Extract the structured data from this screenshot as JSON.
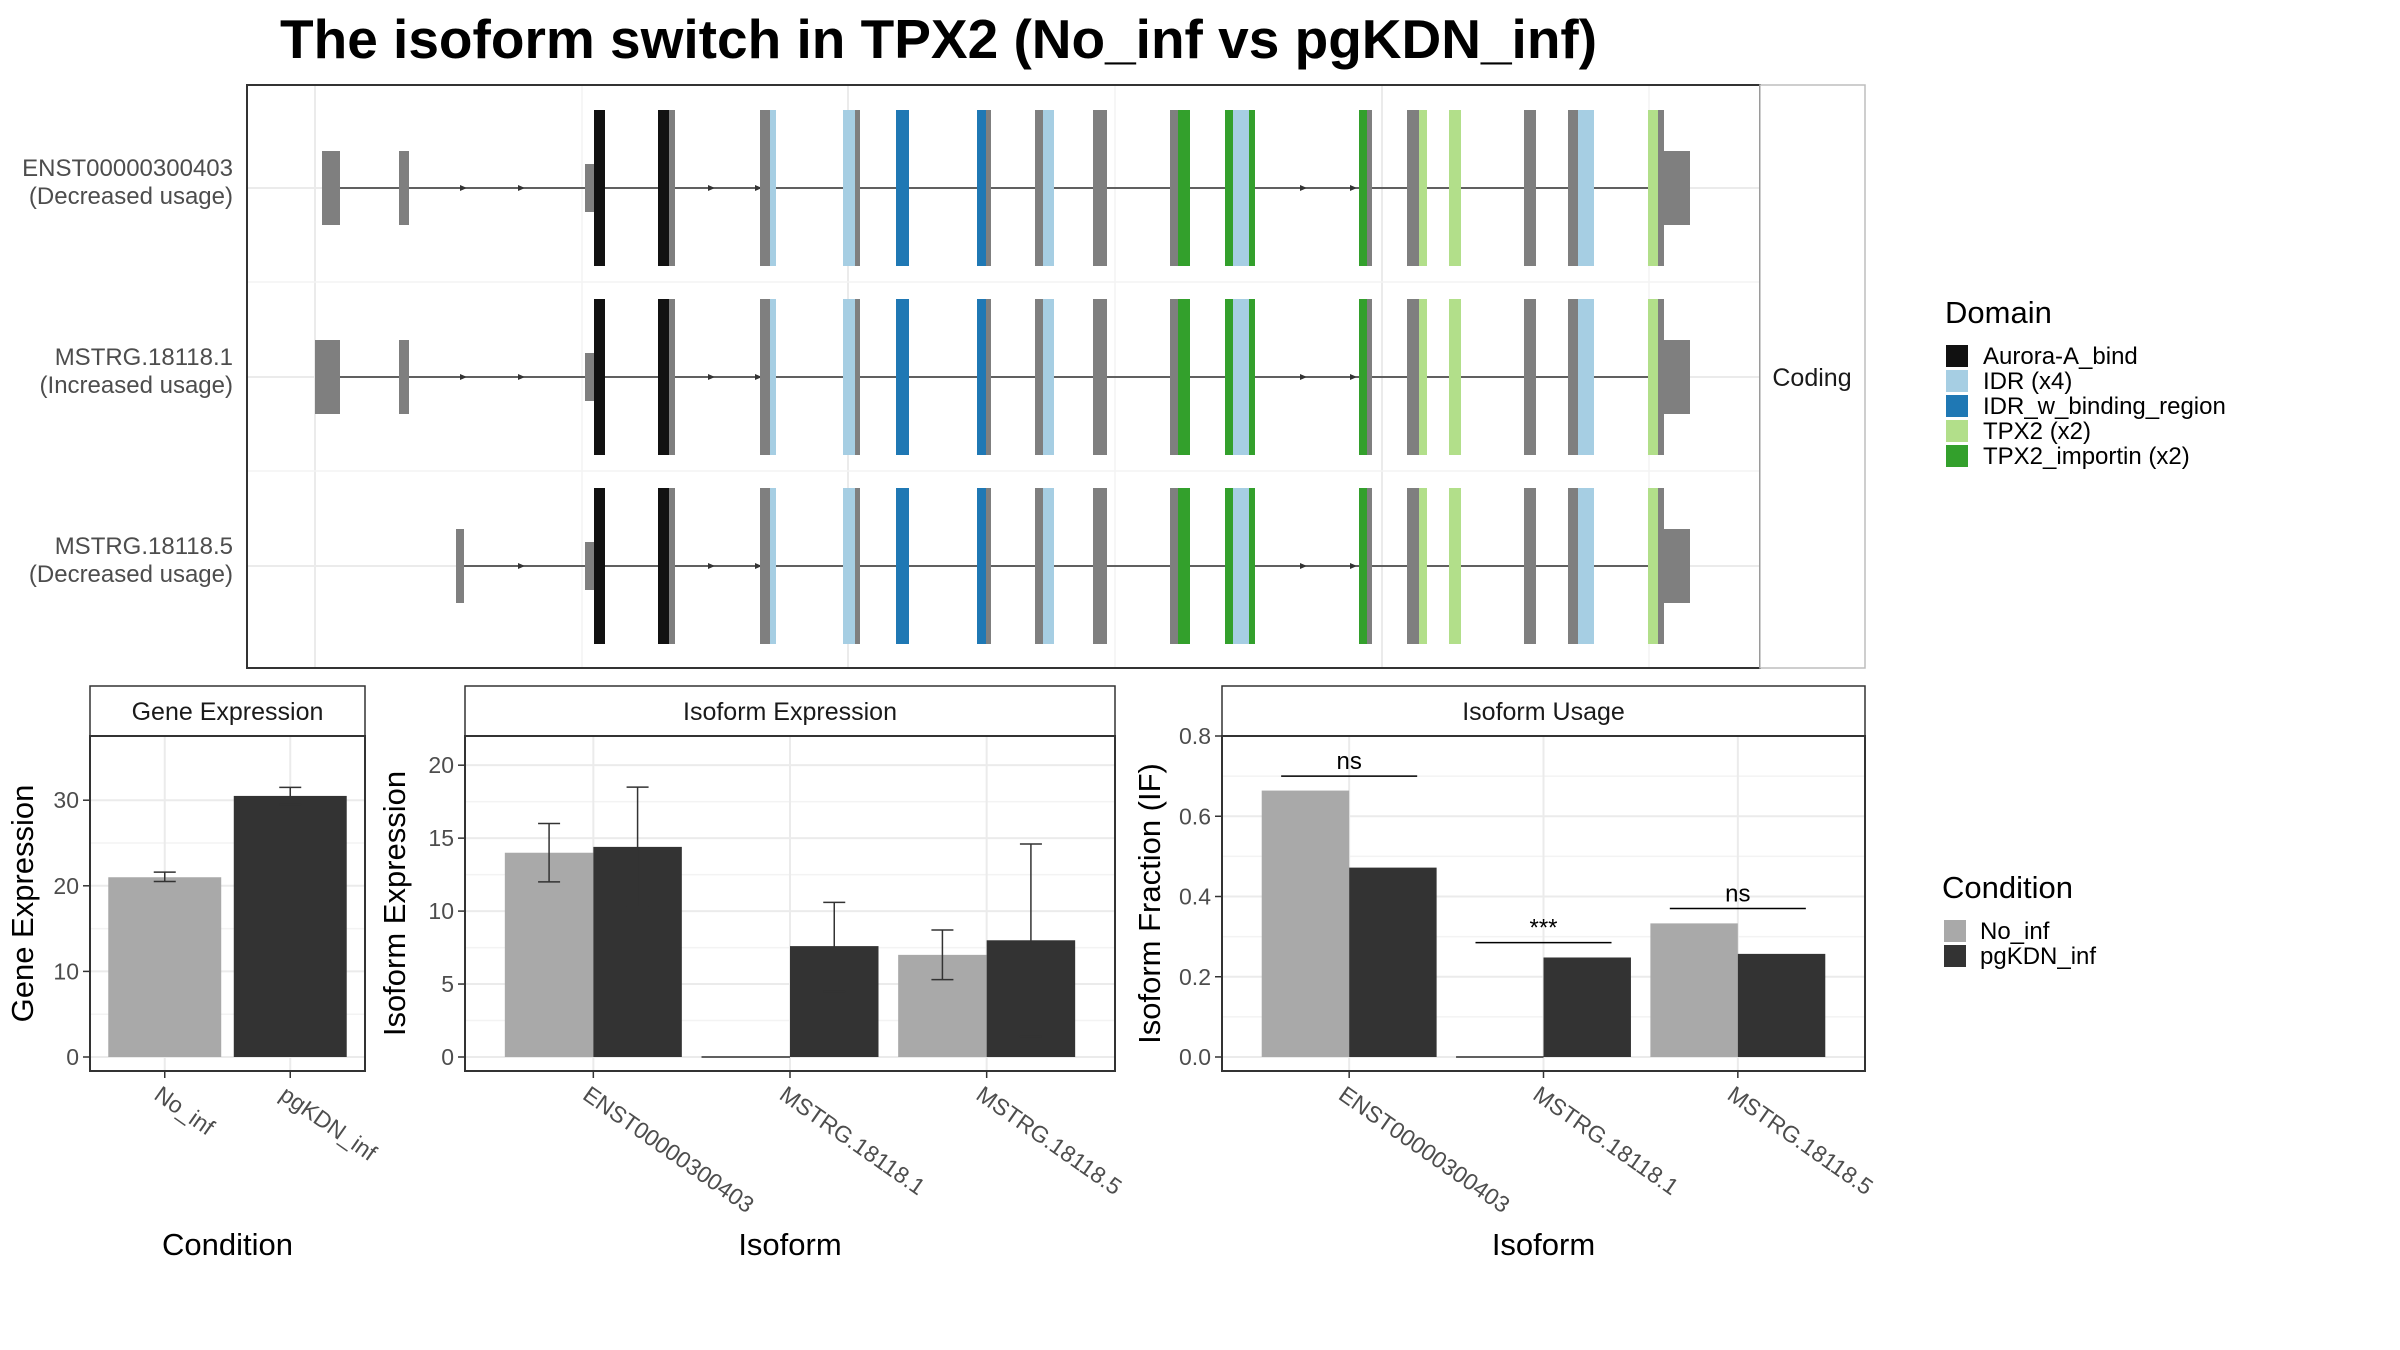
{
  "title": "The isoform switch in TPX2 (No_inf vs pgKDN_inf)",
  "colors": {
    "exon": "#7f7f7f",
    "aurora": "#111111",
    "idr": "#a6cee3",
    "idr_binding": "#1f78b4",
    "tpx2": "#b2df8a",
    "tpx2_importin": "#33a02c",
    "no_inf": "#a9a9a9",
    "pgkdn_inf": "#333333",
    "grid": "#ebebeb",
    "panel_border": "#333333",
    "strip_border": "#bdbdbd"
  },
  "transcripts": {
    "strip_label": "Coding",
    "rows": [
      {
        "id": "ENST00000300403",
        "usage": "(Decreased usage)"
      },
      {
        "id": "MSTRG.18118.1",
        "usage": "(Increased usage)"
      },
      {
        "id": "MSTRG.18118.5",
        "usage": "(Decreased usage)"
      }
    ]
  },
  "domain_legend": {
    "title": "Domain",
    "items": [
      {
        "label": "Aurora-A_bind",
        "color": "#111111"
      },
      {
        "label": "IDR (x4)",
        "color": "#a6cee3"
      },
      {
        "label": "IDR_w_binding_region",
        "color": "#1f78b4"
      },
      {
        "label": "TPX2 (x2)",
        "color": "#b2df8a"
      },
      {
        "label": "TPX2_importin (x2)",
        "color": "#33a02c"
      }
    ]
  },
  "condition_legend": {
    "title": "Condition",
    "items": [
      {
        "label": "No_inf",
        "color": "#a9a9a9"
      },
      {
        "label": "pgKDN_inf",
        "color": "#333333"
      }
    ]
  },
  "chart_data": [
    {
      "type": "bar",
      "title": "Gene Expression",
      "xlabel": "Condition",
      "ylabel": "Gene Expression",
      "categories": [
        "No_inf",
        "pgKDN_inf"
      ],
      "values": [
        21.0,
        30.5
      ],
      "errors": [
        [
          20.5,
          21.6
        ],
        [
          29.5,
          31.5
        ]
      ],
      "colors": [
        "#a9a9a9",
        "#333333"
      ],
      "ylim": [
        0,
        37.5
      ],
      "yticks": [
        0,
        10,
        20,
        30
      ]
    },
    {
      "type": "bar",
      "title": "Isoform Expression",
      "xlabel": "Isoform",
      "ylabel": "Isoform Expression",
      "categories": [
        "ENST00000300403",
        "MSTRG.18118.1",
        "MSTRG.18118.5"
      ],
      "series": [
        {
          "name": "No_inf",
          "values": [
            14.0,
            0.0,
            7.0
          ],
          "errors": [
            [
              12.0,
              16.0
            ],
            [
              0.0,
              0.0
            ],
            [
              5.3,
              8.7
            ]
          ]
        },
        {
          "name": "pgKDN_inf",
          "values": [
            14.4,
            7.6,
            8.0
          ],
          "errors": [
            [
              10.3,
              18.5
            ],
            [
              4.5,
              10.6
            ],
            [
              1.4,
              14.6
            ]
          ]
        }
      ],
      "ylim": [
        0,
        22
      ],
      "yticks": [
        0,
        5,
        10,
        15,
        20
      ]
    },
    {
      "type": "bar",
      "title": "Isoform Usage",
      "xlabel": "Isoform",
      "ylabel": "Isoform Fraction (IF)",
      "categories": [
        "ENST00000300403",
        "MSTRG.18118.1",
        "MSTRG.18118.5"
      ],
      "series": [
        {
          "name": "No_inf",
          "values": [
            0.664,
            0.0,
            0.333
          ]
        },
        {
          "name": "pgKDN_inf",
          "values": [
            0.472,
            0.248,
            0.257
          ]
        }
      ],
      "significance": [
        "ns",
        "***",
        "ns"
      ],
      "significance_y": [
        0.7,
        0.285,
        0.37
      ],
      "ylim": [
        0,
        0.8
      ],
      "yticks": [
        "0.0",
        "0.2",
        "0.4",
        "0.6",
        "0.8"
      ]
    }
  ]
}
